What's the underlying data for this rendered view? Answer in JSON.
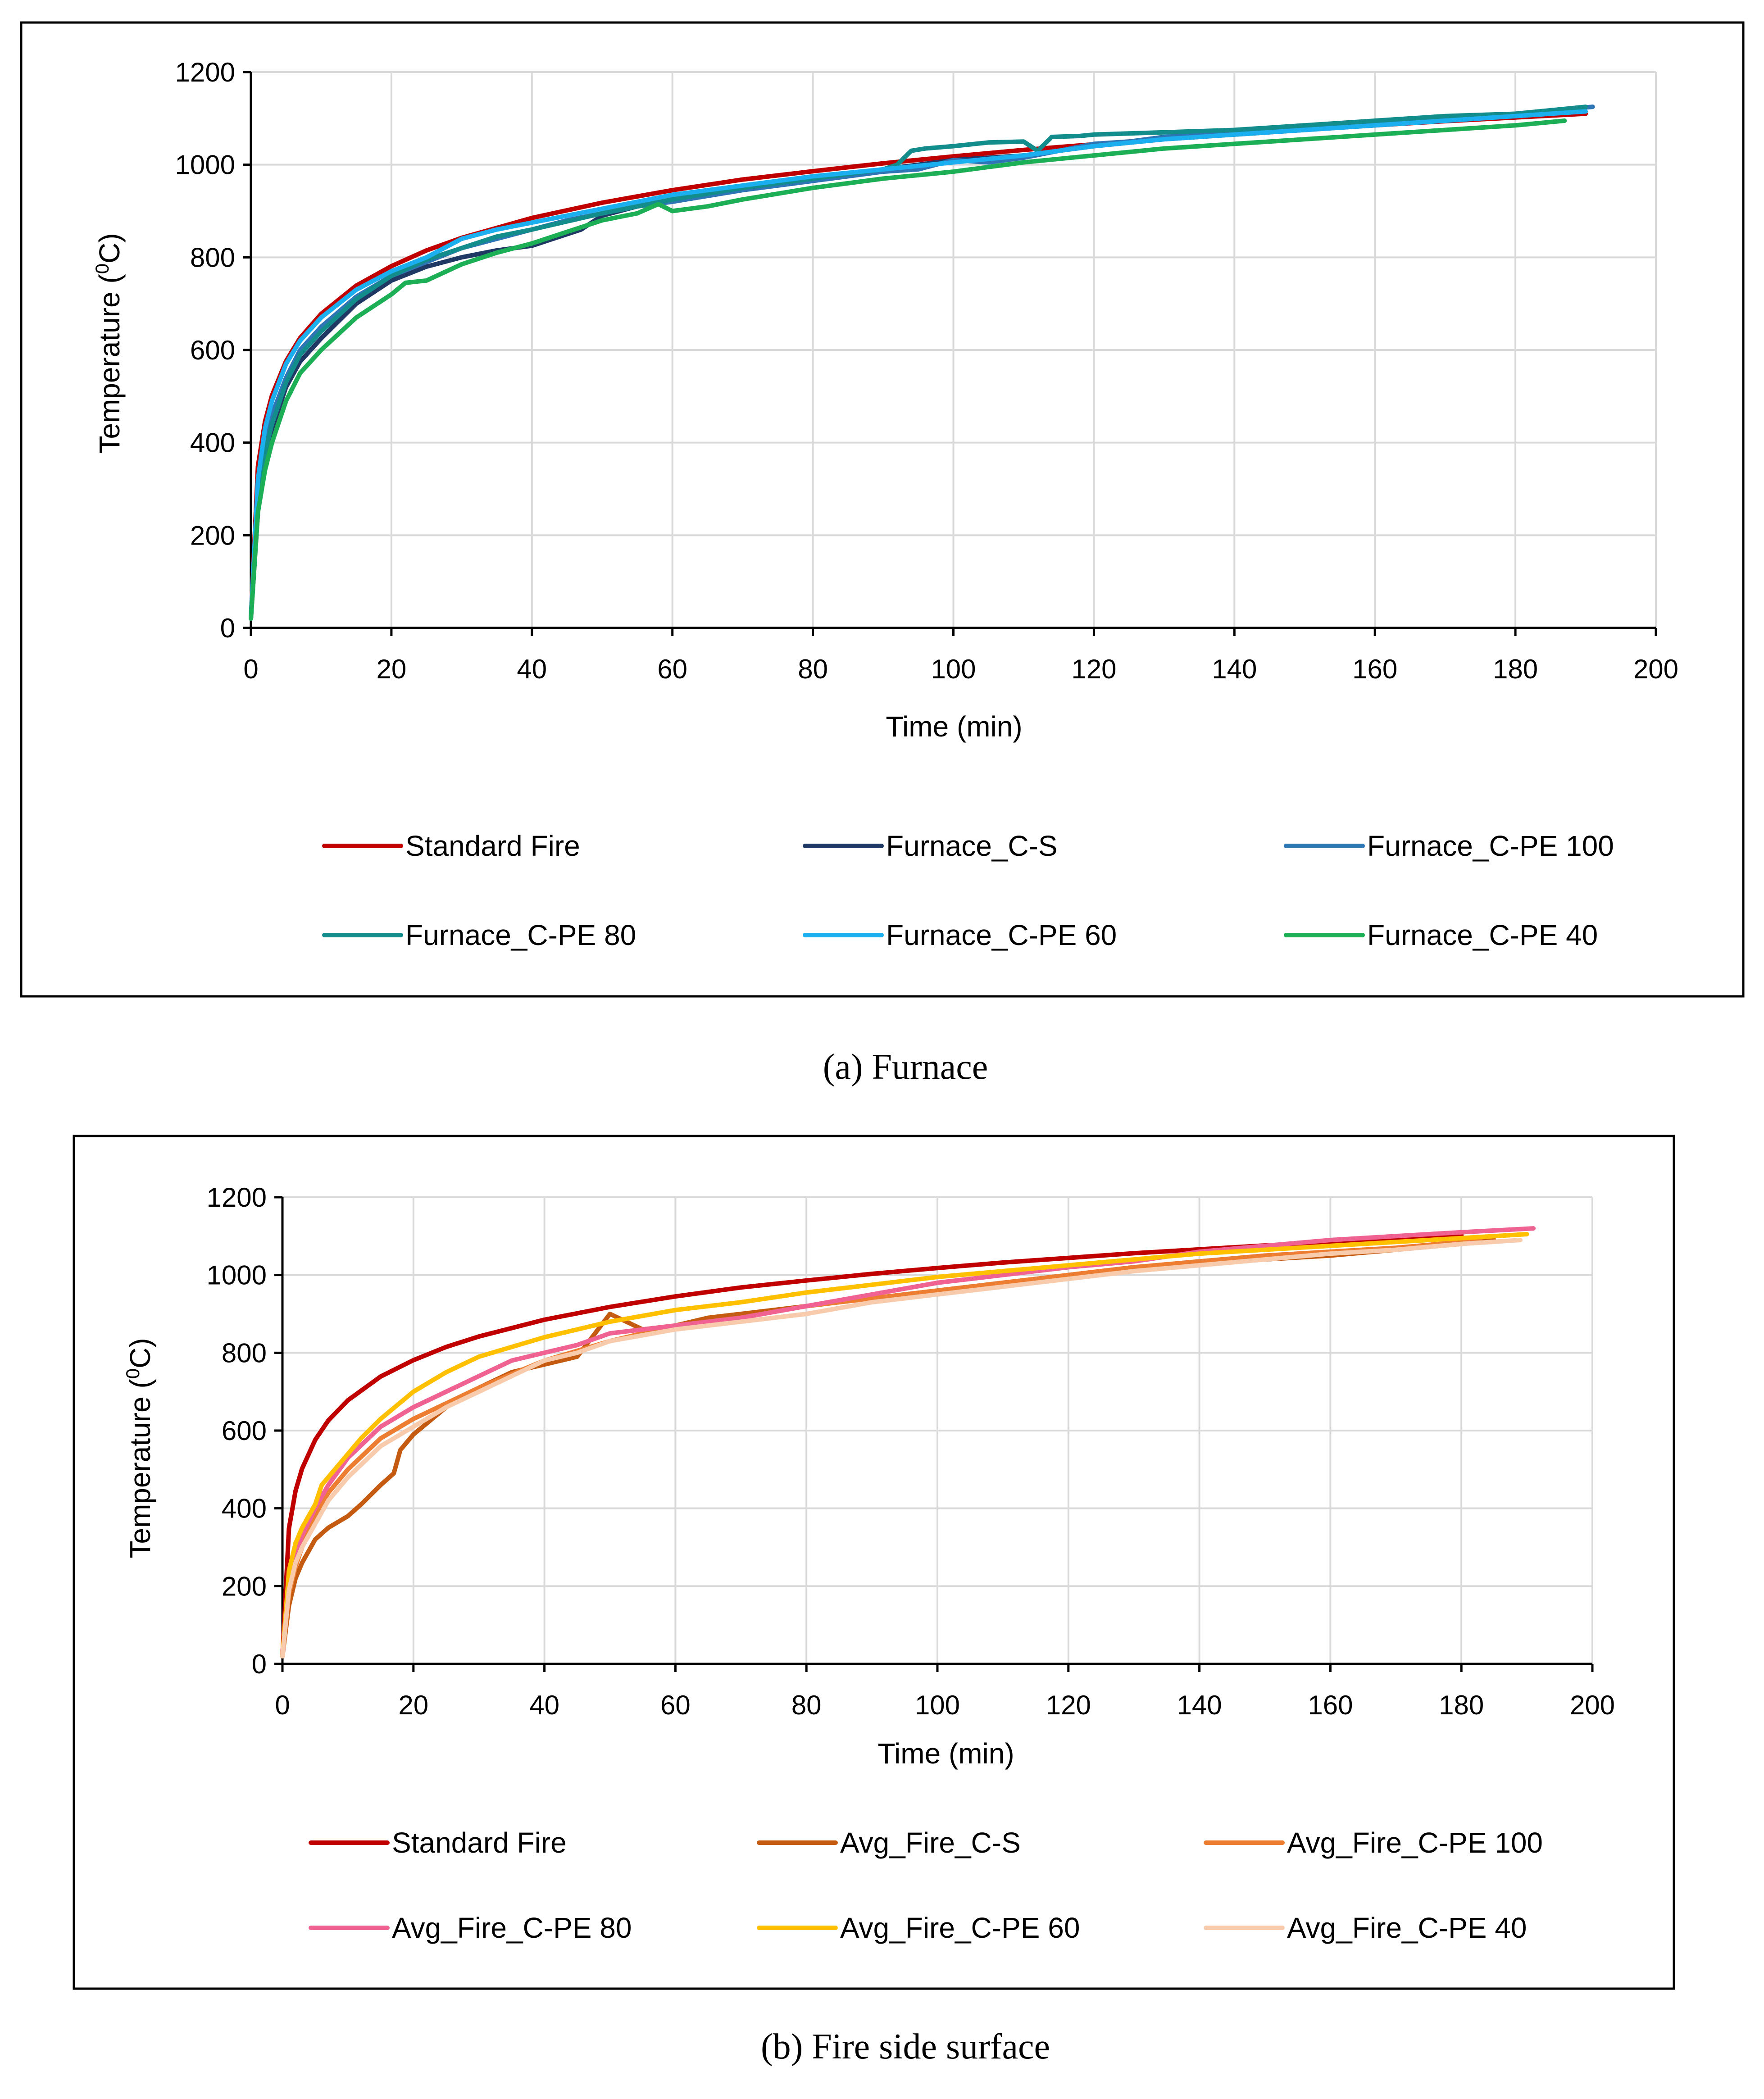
{
  "chart_data": [
    {
      "type": "line",
      "caption": "(a) Furnace",
      "xlabel": "Time (min)",
      "ylabel_main": "Temperature (",
      "ylabel_sup": "0",
      "ylabel_tail": "C)",
      "xlim": [
        0,
        200
      ],
      "ylim": [
        0,
        1200
      ],
      "xticks": [
        "0",
        "20",
        "40",
        "60",
        "80",
        "100",
        "120",
        "140",
        "160",
        "180",
        "200"
      ],
      "yticks": [
        "0",
        "200",
        "400",
        "600",
        "800",
        "1000",
        "1200"
      ],
      "grid": true,
      "legend_position": "bottom",
      "series": [
        {
          "name": "Standard Fire",
          "color": "#C00000",
          "x": [
            0,
            1,
            2,
            3,
            5,
            7,
            10,
            15,
            20,
            25,
            30,
            40,
            50,
            60,
            70,
            80,
            90,
            100,
            110,
            120,
            130,
            140,
            150,
            160,
            170,
            180,
            190
          ],
          "y": [
            20,
            349,
            445,
            502,
            576,
            626,
            678,
            739,
            781,
            815,
            842,
            885,
            918,
            945,
            968,
            986,
            1003,
            1018,
            1032,
            1044,
            1056,
            1066,
            1076,
            1085,
            1094,
            1102,
            1110
          ]
        },
        {
          "name": "Furnace_C-S",
          "color": "#1F3864",
          "x": [
            0,
            1,
            2,
            3,
            5,
            7,
            10,
            15,
            20,
            25,
            30,
            35,
            40,
            45,
            47,
            50,
            55,
            60,
            70,
            80,
            90,
            95,
            100,
            105,
            110,
            120,
            130,
            140,
            150,
            160,
            170,
            180,
            188
          ],
          "y": [
            20,
            250,
            360,
            430,
            520,
            575,
            625,
            700,
            750,
            780,
            800,
            815,
            825,
            850,
            860,
            890,
            910,
            925,
            950,
            970,
            990,
            1000,
            1010,
            1015,
            1020,
            1040,
            1055,
            1065,
            1075,
            1085,
            1095,
            1105,
            1115
          ]
        },
        {
          "name": "Furnace_C-PE 100",
          "color": "#2E75B6",
          "x": [
            0,
            1,
            2,
            3,
            5,
            7,
            10,
            15,
            20,
            25,
            30,
            35,
            40,
            45,
            50,
            55,
            60,
            70,
            80,
            90,
            95,
            100,
            105,
            110,
            115,
            120,
            125,
            130,
            140,
            150,
            160,
            170,
            180,
            191
          ],
          "y": [
            20,
            300,
            400,
            460,
            540,
            600,
            650,
            715,
            760,
            790,
            820,
            840,
            860,
            880,
            895,
            910,
            920,
            945,
            965,
            985,
            990,
            1010,
            1005,
            1015,
            1030,
            1045,
            1050,
            1060,
            1070,
            1080,
            1090,
            1100,
            1110,
            1125
          ]
        },
        {
          "name": "Furnace_C-PE 80",
          "color": "#138C8C",
          "x": [
            0,
            1,
            2,
            3,
            5,
            7,
            10,
            15,
            20,
            25,
            30,
            35,
            40,
            50,
            60,
            70,
            80,
            90,
            92,
            94,
            96,
            100,
            105,
            110,
            112,
            114,
            118,
            120,
            130,
            140,
            150,
            160,
            170,
            180,
            190
          ],
          "y": [
            20,
            280,
            380,
            440,
            530,
            590,
            640,
            710,
            760,
            795,
            820,
            845,
            860,
            895,
            925,
            950,
            970,
            990,
            1000,
            1030,
            1035,
            1040,
            1048,
            1050,
            1030,
            1060,
            1062,
            1065,
            1070,
            1075,
            1085,
            1095,
            1105,
            1110,
            1125
          ]
        },
        {
          "name": "Furnace_C-PE 60",
          "color": "#1CAFEF",
          "x": [
            0,
            1,
            2,
            3,
            5,
            7,
            10,
            15,
            20,
            25,
            30,
            35,
            40,
            50,
            60,
            70,
            80,
            90,
            100,
            110,
            120,
            130,
            140,
            150,
            160,
            170,
            180,
            190
          ],
          "y": [
            20,
            320,
            430,
            490,
            570,
            620,
            670,
            730,
            770,
            800,
            840,
            860,
            875,
            905,
            935,
            955,
            975,
            990,
            1005,
            1020,
            1040,
            1055,
            1065,
            1075,
            1085,
            1095,
            1105,
            1115
          ]
        },
        {
          "name": "Furnace_C-PE 40",
          "color": "#1DAF55",
          "x": [
            0,
            1,
            2,
            3,
            5,
            7,
            10,
            15,
            20,
            22,
            25,
            30,
            35,
            40,
            45,
            50,
            55,
            58,
            60,
            65,
            70,
            80,
            90,
            100,
            110,
            120,
            130,
            140,
            150,
            160,
            170,
            180,
            187
          ],
          "y": [
            20,
            250,
            340,
            400,
            490,
            550,
            600,
            670,
            720,
            745,
            750,
            785,
            810,
            830,
            855,
            880,
            895,
            915,
            900,
            910,
            925,
            950,
            970,
            985,
            1005,
            1020,
            1035,
            1045,
            1055,
            1065,
            1075,
            1085,
            1095
          ]
        }
      ]
    },
    {
      "type": "line",
      "caption": "(b) Fire side surface",
      "xlabel": "Time (min)",
      "ylabel_main": "Temperature (",
      "ylabel_sup": "0",
      "ylabel_tail": "C)",
      "xlim": [
        0,
        200
      ],
      "ylim": [
        0,
        1200
      ],
      "xticks": [
        "0",
        "20",
        "40",
        "60",
        "80",
        "100",
        "120",
        "140",
        "160",
        "180",
        "200"
      ],
      "yticks": [
        "0",
        "200",
        "400",
        "600",
        "800",
        "1000",
        "1200"
      ],
      "grid": true,
      "legend_position": "bottom",
      "series": [
        {
          "name": "Standard Fire",
          "color": "#C00000",
          "x": [
            0,
            1,
            2,
            3,
            5,
            7,
            10,
            15,
            20,
            25,
            30,
            40,
            50,
            60,
            70,
            80,
            90,
            100,
            110,
            120,
            130,
            140,
            150,
            160,
            170,
            180
          ],
          "y": [
            20,
            349,
            445,
            502,
            576,
            626,
            678,
            739,
            781,
            815,
            842,
            885,
            918,
            945,
            968,
            986,
            1003,
            1018,
            1032,
            1044,
            1056,
            1066,
            1076,
            1085,
            1094,
            1102
          ]
        },
        {
          "name": "Avg_Fire_C-S",
          "color": "#C55A11",
          "x": [
            0,
            1,
            2,
            3,
            5,
            7,
            10,
            12,
            15,
            17,
            18,
            20,
            25,
            30,
            35,
            40,
            45,
            50,
            55,
            60,
            65,
            70,
            80,
            90,
            100,
            110,
            120,
            130,
            140,
            150,
            160,
            170,
            180,
            185
          ],
          "y": [
            20,
            150,
            220,
            260,
            320,
            350,
            380,
            410,
            460,
            490,
            550,
            590,
            660,
            710,
            750,
            770,
            790,
            900,
            860,
            870,
            890,
            900,
            920,
            940,
            960,
            980,
            1000,
            1020,
            1030,
            1040,
            1050,
            1065,
            1080,
            1090
          ]
        },
        {
          "name": "Avg_Fire_C-PE 100",
          "color": "#ED7D31",
          "x": [
            0,
            1,
            2,
            3,
            5,
            7,
            10,
            15,
            20,
            25,
            30,
            40,
            50,
            60,
            70,
            80,
            90,
            100,
            110,
            120,
            130,
            140,
            150,
            160,
            170,
            180,
            183
          ],
          "y": [
            20,
            180,
            250,
            300,
            380,
            440,
            500,
            580,
            630,
            670,
            710,
            780,
            830,
            870,
            890,
            920,
            940,
            960,
            980,
            1000,
            1020,
            1035,
            1050,
            1060,
            1070,
            1085,
            1095
          ]
        },
        {
          "name": "Avg_Fire_C-PE 80",
          "color": "#F06292",
          "x": [
            0,
            1,
            2,
            3,
            5,
            7,
            10,
            15,
            20,
            25,
            30,
            35,
            40,
            45,
            50,
            55,
            60,
            70,
            80,
            90,
            100,
            110,
            120,
            130,
            140,
            150,
            160,
            170,
            180,
            191
          ],
          "y": [
            20,
            200,
            280,
            330,
            400,
            460,
            530,
            610,
            660,
            700,
            740,
            780,
            800,
            820,
            850,
            860,
            870,
            890,
            920,
            950,
            980,
            1000,
            1020,
            1035,
            1060,
            1075,
            1090,
            1100,
            1110,
            1120
          ]
        },
        {
          "name": "Avg_Fire_C-PE 60",
          "color": "#FFC000",
          "x": [
            0,
            1,
            2,
            3,
            5,
            6,
            7,
            10,
            12,
            15,
            20,
            25,
            30,
            40,
            50,
            60,
            70,
            80,
            90,
            100,
            110,
            120,
            130,
            140,
            150,
            160,
            170,
            180,
            190
          ],
          "y": [
            20,
            240,
            310,
            350,
            410,
            460,
            480,
            540,
            580,
            630,
            700,
            750,
            790,
            840,
            880,
            910,
            930,
            955,
            975,
            995,
            1010,
            1025,
            1040,
            1055,
            1065,
            1075,
            1085,
            1095,
            1105
          ]
        },
        {
          "name": "Avg_Fire_C-PE 40",
          "color": "#F8CBAD",
          "x": [
            0,
            1,
            2,
            3,
            5,
            7,
            10,
            15,
            20,
            25,
            30,
            35,
            40,
            45,
            50,
            60,
            70,
            80,
            90,
            100,
            110,
            120,
            130,
            140,
            150,
            160,
            170,
            180,
            189
          ],
          "y": [
            20,
            190,
            260,
            300,
            360,
            420,
            480,
            560,
            610,
            660,
            700,
            740,
            780,
            800,
            830,
            860,
            880,
            900,
            930,
            950,
            970,
            990,
            1010,
            1025,
            1040,
            1055,
            1065,
            1080,
            1090
          ]
        }
      ]
    }
  ]
}
